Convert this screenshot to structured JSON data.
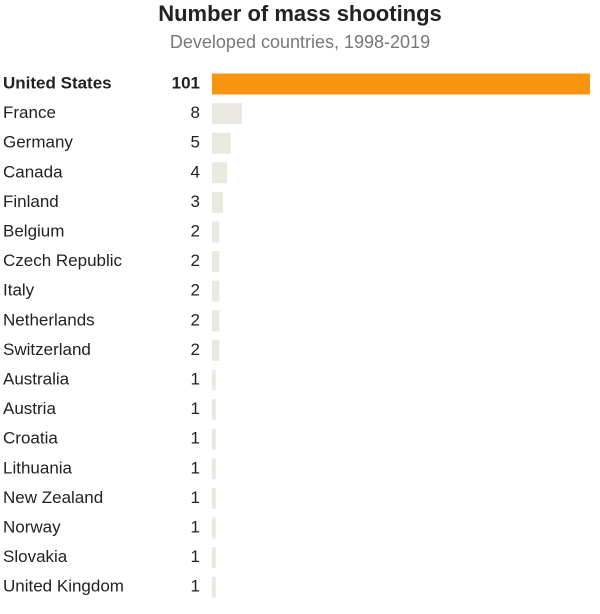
{
  "chart_data": {
    "type": "bar",
    "orientation": "horizontal",
    "title": "Number of mass shootings",
    "subtitle": "Developed countries, 1998-2019",
    "categories": [
      "United States",
      "France",
      "Germany",
      "Canada",
      "Finland",
      "Belgium",
      "Czech Republic",
      "Italy",
      "Netherlands",
      "Switzerland",
      "Australia",
      "Austria",
      "Croatia",
      "Lithuania",
      "New Zealand",
      "Norway",
      "Slovakia",
      "United Kingdom"
    ],
    "values": [
      101,
      8,
      5,
      4,
      3,
      2,
      2,
      2,
      2,
      2,
      1,
      1,
      1,
      1,
      1,
      1,
      1,
      1
    ],
    "colors": [
      "#f7950f",
      "#e9e9e1",
      "#e9e9e1",
      "#e9e9e1",
      "#e9e9e1",
      "#e9e9e1",
      "#e9e9e1",
      "#e9e9e1",
      "#e9e9e1",
      "#e9e9e1",
      "#e9e9e1",
      "#e9e9e1",
      "#e9e9e1",
      "#e9e9e1",
      "#e9e9e1",
      "#e9e9e1",
      "#e9e9e1",
      "#e9e9e1"
    ],
    "font_weights": [
      "bold",
      "normal",
      "normal",
      "normal",
      "normal",
      "normal",
      "normal",
      "normal",
      "normal",
      "normal",
      "normal",
      "normal",
      "normal",
      "normal",
      "normal",
      "normal",
      "normal",
      "normal"
    ],
    "xlim": [
      0,
      101
    ]
  }
}
